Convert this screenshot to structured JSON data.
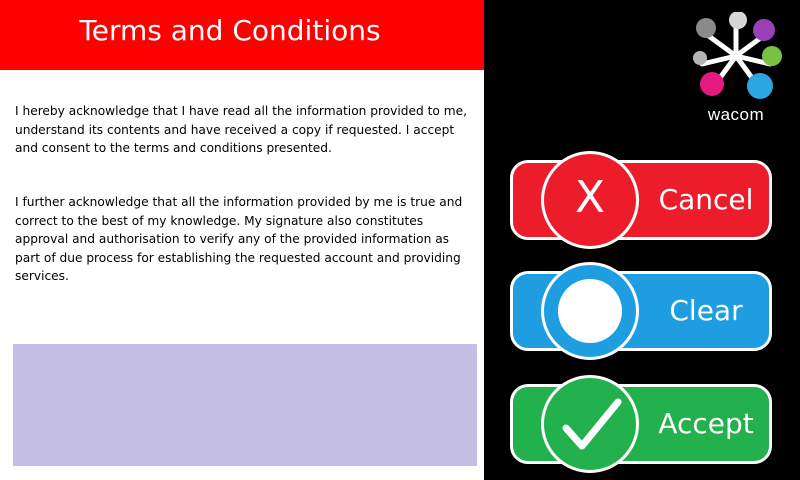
{
  "header": {
    "title": "Terms and Conditions"
  },
  "terms": {
    "paragraph1": "I hereby acknowledge that I have read all the information provided to me, understand its contents and have received a copy if requested. I accept and consent to the terms and conditions presented.",
    "paragraph2": "I further acknowledge that all the information provided by me is true and correct to the best of my knowledge.  My signature also constitutes approval and authorisation to verify any of the provided information as part of due process for establishing the requested account and providing services."
  },
  "signature_pad": {
    "color": "#c5bfe5"
  },
  "logo": {
    "wordmark": "wacom",
    "icon": "wacom-logo-icon"
  },
  "buttons": {
    "cancel": {
      "label": "Cancel",
      "glyph": "X",
      "icon": "x-icon",
      "color": "#ed1c2b"
    },
    "clear": {
      "label": "Clear",
      "icon": "circle-icon",
      "color": "#1e9de0"
    },
    "accept": {
      "label": "Accept",
      "icon": "checkmark-icon",
      "color": "#22b14c"
    }
  },
  "colors": {
    "header": "#ff0000",
    "background": "#000000"
  }
}
